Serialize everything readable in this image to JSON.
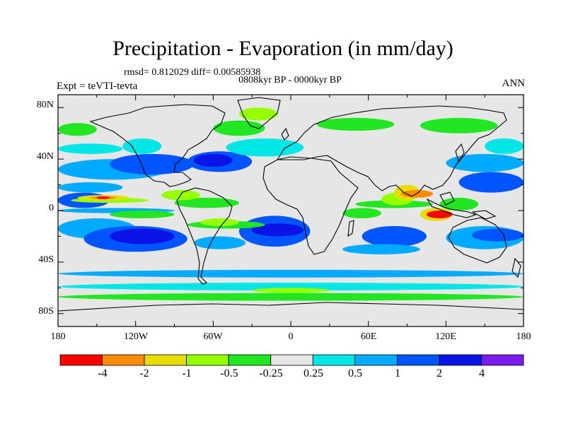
{
  "title": "Precipitation - Evaporation (in mm/day)",
  "stats_text": "rmsd= 0.812029 diff= 0.00585938",
  "period": "0808kyr BP - 0000kyr BP",
  "experiment": "Expt = teVTI-tevta",
  "season": "ANN",
  "y_tick_labels": [
    "80N",
    "40N",
    "0",
    "40S",
    "80S"
  ],
  "x_tick_labels": [
    "180",
    "120W",
    "60W",
    "0",
    "60E",
    "120E",
    "180"
  ],
  "colorbar": {
    "labels": [
      "-4",
      "-2",
      "-1",
      "-0.5",
      "-0.25",
      "0.25",
      "0.5",
      "1",
      "2",
      "4"
    ],
    "colors": [
      "#ff0000",
      "#ff8c00",
      "#e6dc00",
      "#96ff00",
      "#22e622",
      "#e6e6e6",
      "#00e6e6",
      "#00aaff",
      "#0055ff",
      "#0a14e6",
      "#7a1cf0"
    ]
  },
  "palette": {
    "background": "#e6e6e6",
    "coast": "#000000"
  },
  "field_cells": [
    {
      "c": 8,
      "lon": [
        -180,
        -140
      ],
      "lat": [
        2,
        14
      ]
    },
    {
      "c": 7,
      "lon": [
        -180,
        -130
      ],
      "lat": [
        14,
        22
      ]
    },
    {
      "c": 7,
      "lon": [
        -180,
        -90
      ],
      "lat": [
        -2,
        2
      ]
    },
    {
      "c": 7,
      "lon": [
        -180,
        -95
      ],
      "lat": [
        24,
        40
      ]
    },
    {
      "c": 8,
      "lon": [
        -140,
        -75
      ],
      "lat": [
        28,
        44
      ]
    },
    {
      "c": 6,
      "lon": [
        -180,
        -130
      ],
      "lat": [
        44,
        52
      ]
    },
    {
      "c": 6,
      "lon": [
        -130,
        -100
      ],
      "lat": [
        44,
        56
      ]
    },
    {
      "c": 8,
      "lon": [
        -80,
        -30
      ],
      "lat": [
        30,
        46
      ]
    },
    {
      "c": 9,
      "lon": [
        -75,
        -45
      ],
      "lat": [
        34,
        44
      ]
    },
    {
      "c": 6,
      "lon": [
        -50,
        10
      ],
      "lat": [
        42,
        56
      ]
    },
    {
      "c": 7,
      "lon": [
        -180,
        -120
      ],
      "lat": [
        -22,
        -6
      ]
    },
    {
      "c": 8,
      "lon": [
        -160,
        -80
      ],
      "lat": [
        -32,
        -12
      ]
    },
    {
      "c": 9,
      "lon": [
        -140,
        -90
      ],
      "lat": [
        -26,
        -14
      ]
    },
    {
      "c": 7,
      "lon": [
        -75,
        -35
      ],
      "lat": [
        -30,
        -20
      ]
    },
    {
      "c": 8,
      "lon": [
        -40,
        15
      ],
      "lat": [
        -28,
        -4
      ]
    },
    {
      "c": 9,
      "lon": [
        -30,
        10
      ],
      "lat": [
        -20,
        -10
      ]
    },
    {
      "c": 8,
      "lon": [
        55,
        105
      ],
      "lat": [
        -28,
        -12
      ]
    },
    {
      "c": 7,
      "lon": [
        40,
        100
      ],
      "lat": [
        -34,
        -26
      ]
    },
    {
      "c": 7,
      "lon": [
        120,
        180
      ],
      "lat": [
        -30,
        -12
      ]
    },
    {
      "c": 8,
      "lon": [
        140,
        180
      ],
      "lat": [
        -24,
        -14
      ]
    },
    {
      "c": 8,
      "lon": [
        130,
        180
      ],
      "lat": [
        14,
        30
      ]
    },
    {
      "c": 7,
      "lon": [
        120,
        180
      ],
      "lat": [
        30,
        44
      ]
    },
    {
      "c": 6,
      "lon": [
        150,
        180
      ],
      "lat": [
        44,
        56
      ]
    },
    {
      "c": 7,
      "lon": [
        -180,
        180
      ],
      "lat": [
        -52,
        -46
      ]
    },
    {
      "c": 6,
      "lon": [
        -180,
        180
      ],
      "lat": [
        -62,
        -56
      ]
    },
    {
      "c": 4,
      "lon": [
        -140,
        -90
      ],
      "lat": [
        -6,
        0
      ]
    },
    {
      "c": 4,
      "lon": [
        -90,
        -40
      ],
      "lat": [
        2,
        10
      ]
    },
    {
      "c": 3,
      "lon": [
        -170,
        -110
      ],
      "lat": [
        6,
        10
      ]
    },
    {
      "c": 2,
      "lon": [
        -165,
        -125
      ],
      "lat": [
        8,
        12
      ]
    },
    {
      "c": 1,
      "lon": [
        -155,
        -135
      ],
      "lat": [
        9,
        11
      ]
    },
    {
      "c": 0,
      "lon": [
        -150,
        -140
      ],
      "lat": [
        9,
        11
      ]
    },
    {
      "c": 3,
      "lon": [
        -100,
        -70
      ],
      "lat": [
        8,
        16
      ]
    },
    {
      "c": 4,
      "lon": [
        -80,
        -20
      ],
      "lat": [
        -14,
        -8
      ]
    },
    {
      "c": 3,
      "lon": [
        -70,
        -40
      ],
      "lat": [
        -12,
        -6
      ]
    },
    {
      "c": 4,
      "lon": [
        50,
        110
      ],
      "lat": [
        2,
        8
      ]
    },
    {
      "c": 3,
      "lon": [
        70,
        95
      ],
      "lat": [
        4,
        14
      ]
    },
    {
      "c": 2,
      "lon": [
        80,
        100
      ],
      "lat": [
        8,
        20
      ]
    },
    {
      "c": 1,
      "lon": [
        85,
        110
      ],
      "lat": [
        10,
        16
      ]
    },
    {
      "c": 2,
      "lon": [
        100,
        125
      ],
      "lat": [
        -8,
        2
      ]
    },
    {
      "c": 0,
      "lon": [
        105,
        125
      ],
      "lat": [
        -6,
        0
      ]
    },
    {
      "c": 4,
      "lon": [
        40,
        70
      ],
      "lat": [
        -6,
        2
      ]
    },
    {
      "c": 4,
      "lon": [
        115,
        145
      ],
      "lat": [
        0,
        10
      ]
    },
    {
      "c": 4,
      "lon": [
        -60,
        -20
      ],
      "lat": [
        58,
        70
      ]
    },
    {
      "c": 3,
      "lon": [
        -40,
        -10
      ],
      "lat": [
        70,
        80
      ]
    },
    {
      "c": 4,
      "lon": [
        -180,
        -150
      ],
      "lat": [
        58,
        68
      ]
    },
    {
      "c": 4,
      "lon": [
        20,
        80
      ],
      "lat": [
        62,
        72
      ]
    },
    {
      "c": 4,
      "lon": [
        100,
        160
      ],
      "lat": [
        60,
        72
      ]
    },
    {
      "c": 4,
      "lon": [
        -180,
        180
      ],
      "lat": [
        -70,
        -64
      ]
    },
    {
      "c": 3,
      "lon": [
        -30,
        30
      ],
      "lat": [
        -64,
        -60
      ]
    }
  ]
}
